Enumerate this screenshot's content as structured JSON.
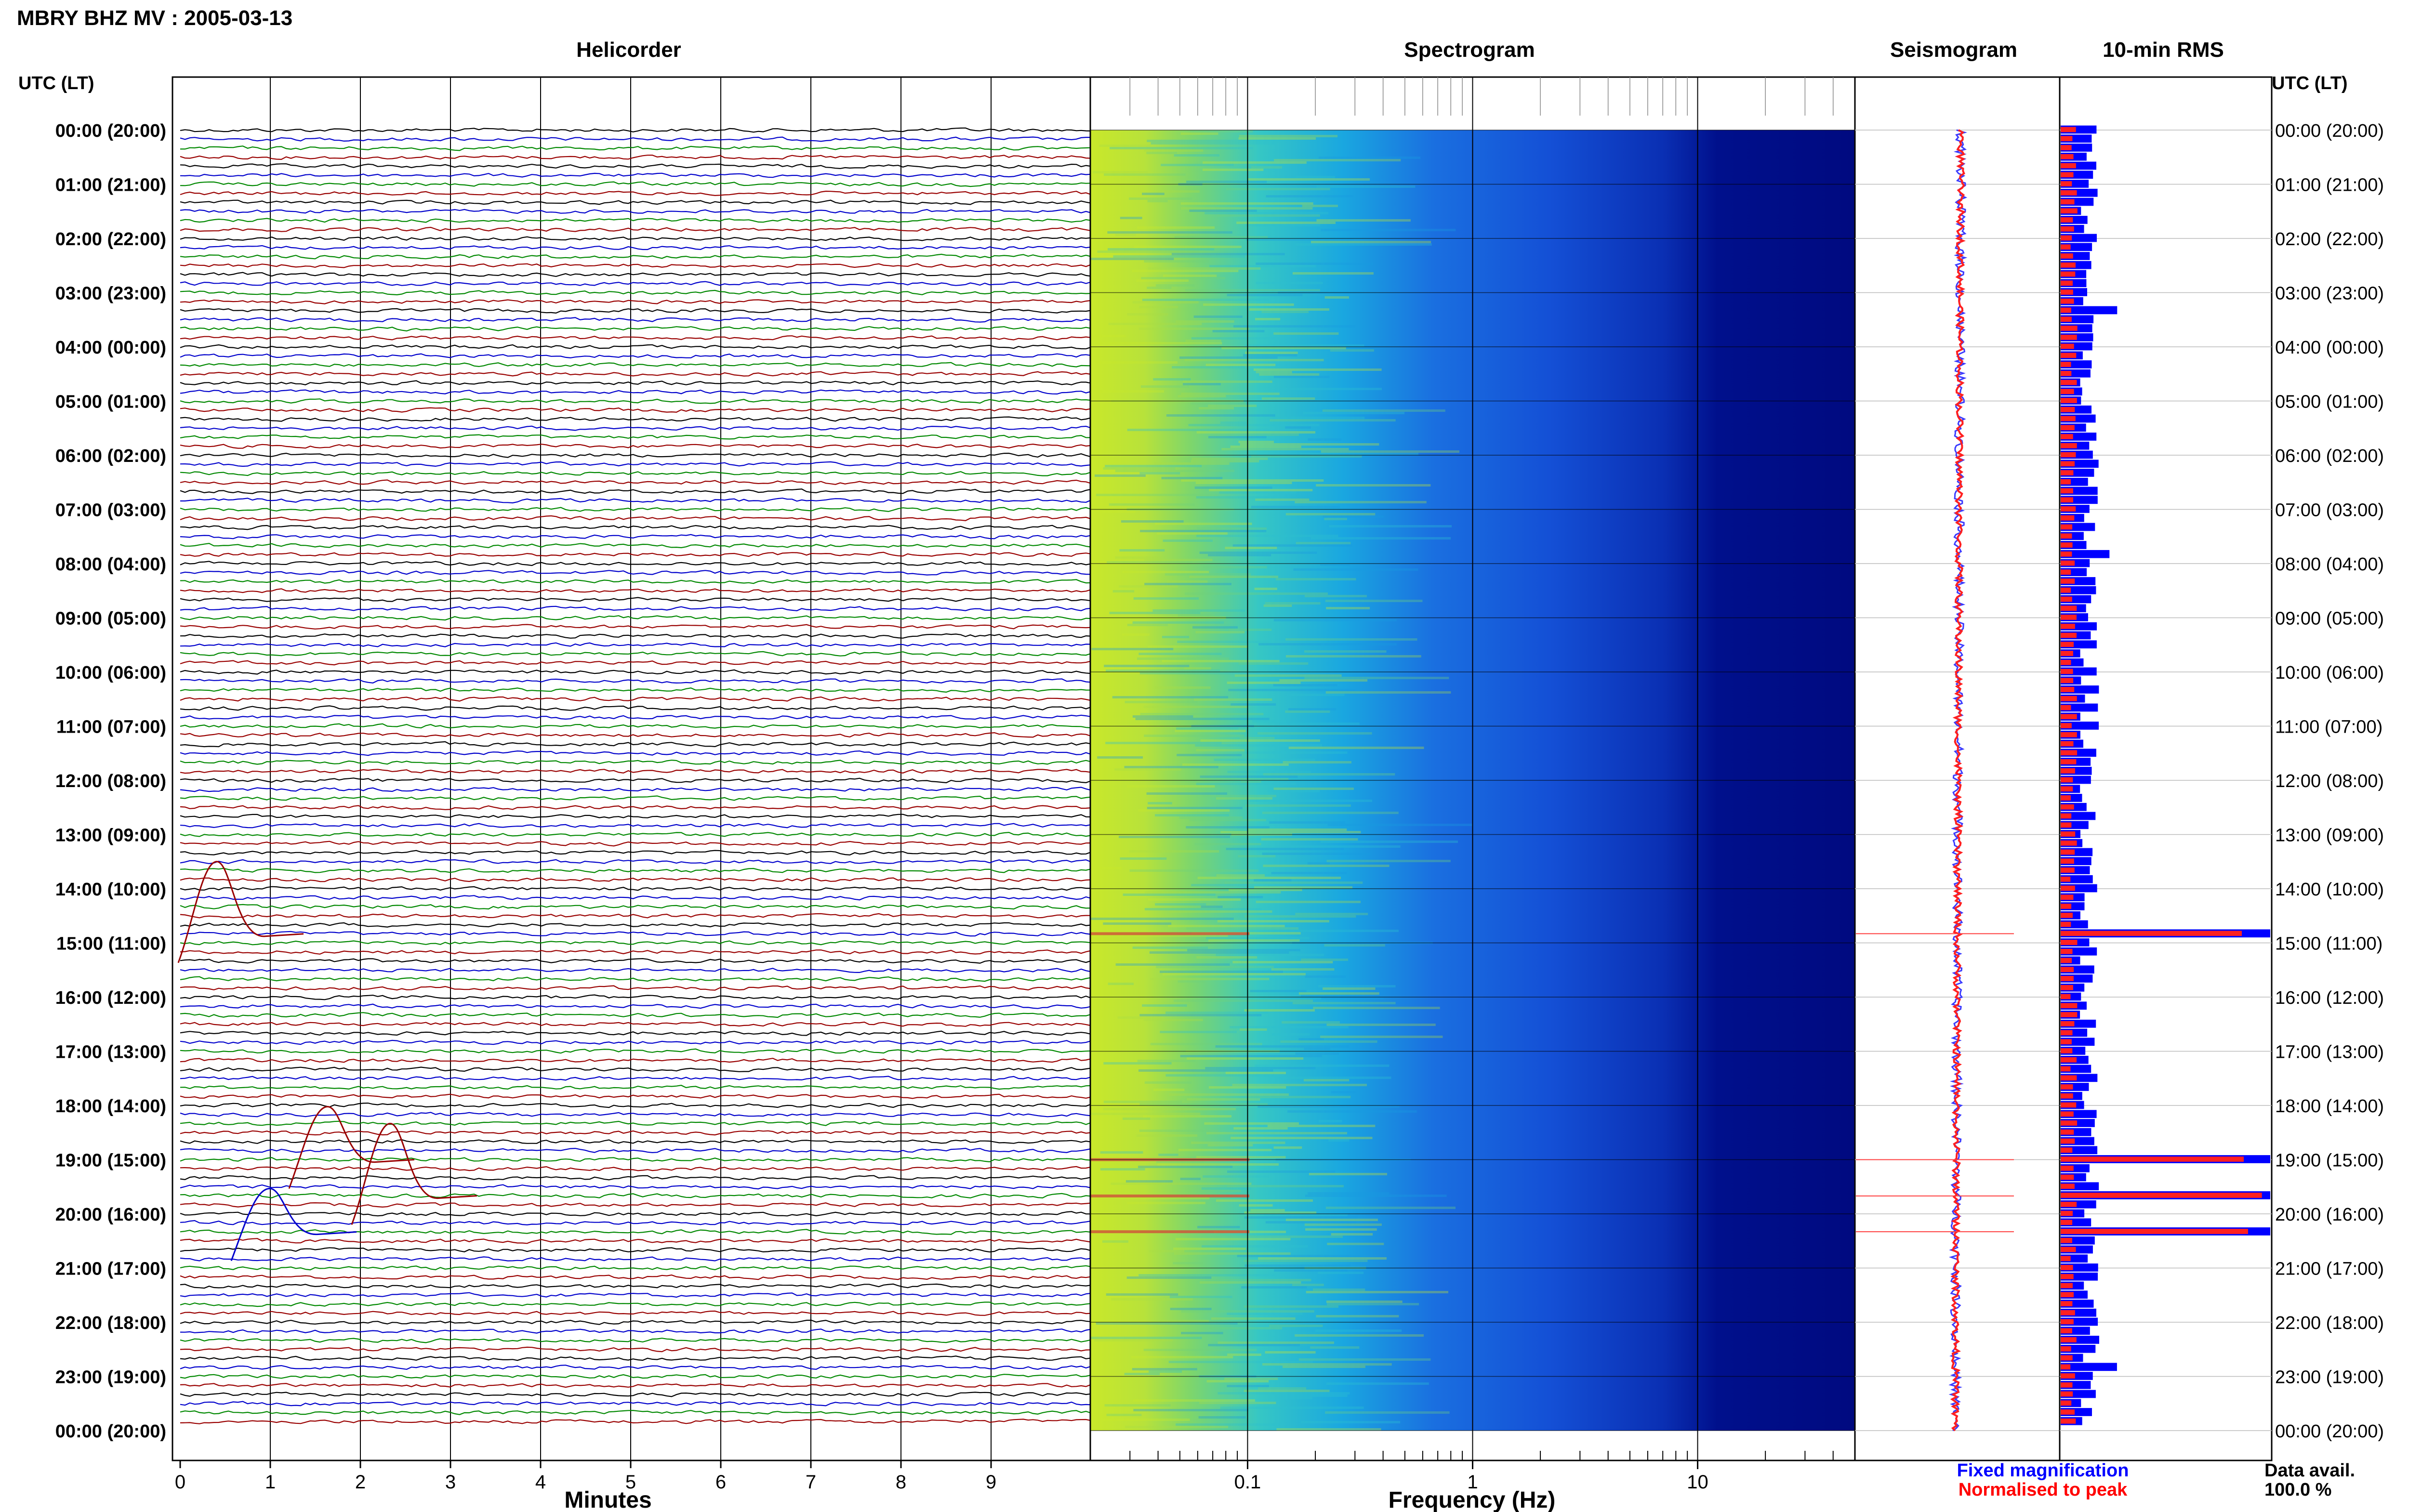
{
  "title": "MBRY BHZ MV : 2005-03-13",
  "panels": {
    "helicorder": "Helicorder",
    "spectrogram": "Spectrogram",
    "seismogram": "Seismogram",
    "rms": "10-min RMS"
  },
  "time_axis_header_left": "UTC (LT)",
  "time_axis_header_right": "UTC (LT)",
  "time_labels": [
    "00:00 (20:00)",
    "01:00 (21:00)",
    "02:00 (22:00)",
    "03:00 (23:00)",
    "04:00 (00:00)",
    "05:00 (01:00)",
    "06:00 (02:00)",
    "07:00 (03:00)",
    "08:00 (04:00)",
    "09:00 (05:00)",
    "10:00 (06:00)",
    "11:00 (07:00)",
    "12:00 (08:00)",
    "13:00 (09:00)",
    "14:00 (10:00)",
    "15:00 (11:00)",
    "16:00 (12:00)",
    "17:00 (13:00)",
    "18:00 (14:00)",
    "19:00 (15:00)",
    "20:00 (16:00)",
    "21:00 (17:00)",
    "22:00 (18:00)",
    "23:00 (19:00)",
    "00:00 (20:00)"
  ],
  "helicorder_xlabel": "Minutes",
  "helicorder_ticks": [
    "0",
    "1",
    "2",
    "3",
    "4",
    "5",
    "6",
    "7",
    "8",
    "9"
  ],
  "spectrogram_xlabel": "Frequency (Hz)",
  "spectrogram_ticks": [
    "0.1",
    "1",
    "10"
  ],
  "legend": {
    "fixed": "Fixed magnification",
    "normalised": "Normalised to peak",
    "fixed_color": "#0000ff",
    "normalised_color": "#ff0000"
  },
  "data_avail_label": "Data avail.",
  "data_avail_value": "100.0 %",
  "trace_colors": [
    "#000000",
    "#0000cc",
    "#008800",
    "#990000"
  ],
  "chart_data": [
    {
      "type": "line",
      "title": "Helicorder",
      "xlabel": "Minutes",
      "xlim": [
        0,
        10
      ],
      "rows_per_hour": 6,
      "hours": 24,
      "events": [
        {
          "time": "14:50",
          "description": "large signal"
        },
        {
          "time": "19:00",
          "description": "large signal"
        },
        {
          "time": "19:40",
          "description": "large signal"
        },
        {
          "time": "20:20",
          "description": "large signal"
        }
      ]
    },
    {
      "type": "heatmap",
      "title": "Spectrogram",
      "xlabel": "Frequency (Hz)",
      "xscale": "log",
      "xlim": [
        0.02,
        50
      ]
    },
    {
      "type": "bar",
      "title": "10-min RMS",
      "orientation": "horizontal",
      "series": [
        {
          "name": "Fixed magnification",
          "color": "#0000ff"
        },
        {
          "name": "Normalised to peak",
          "color": "#ff0000"
        }
      ],
      "notes_rows": {
        "peaks_at_hours": [
          14.83,
          19.0,
          19.67,
          20.33
        ]
      }
    }
  ]
}
